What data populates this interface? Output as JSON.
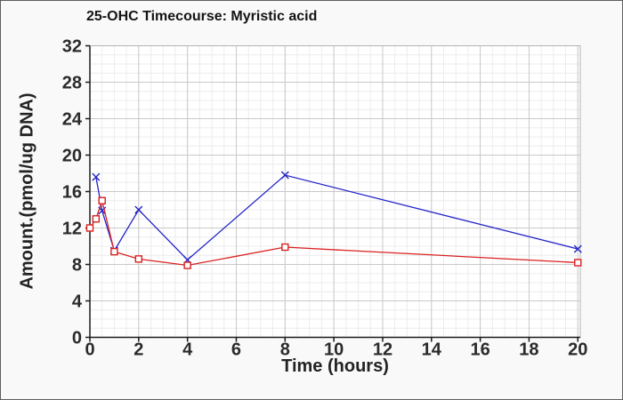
{
  "chart_data": {
    "type": "line",
    "title": "25-OHC Timecourse: Myristic acid",
    "xlabel": "Time (hours)",
    "ylabel": "Amount.(pmol/ug DNA)",
    "xlim": [
      0,
      20.1
    ],
    "ylim": [
      0,
      32
    ],
    "x_ticks": [
      0,
      2,
      4,
      6,
      8,
      10,
      12,
      14,
      16,
      18,
      20
    ],
    "y_ticks": [
      0,
      4,
      8,
      12,
      16,
      20,
      24,
      28,
      32
    ],
    "x_minor_step": 0.5,
    "y_minor_step": 1,
    "grid": "major and minor, both axes",
    "legend_position": "none",
    "series": [
      {
        "id": "blue",
        "marker": "x",
        "color": "#2323c8",
        "points": [
          [
            0.25,
            17.6
          ],
          [
            0.5,
            13.9
          ],
          [
            1,
            9.5
          ],
          [
            2,
            14.0
          ],
          [
            4,
            8.5
          ],
          [
            8,
            17.8
          ],
          [
            20,
            9.7
          ]
        ]
      },
      {
        "id": "red",
        "marker": "open-square",
        "color": "#d92020",
        "points": [
          [
            0,
            12.0
          ],
          [
            0.25,
            13.0
          ],
          [
            0.5,
            15.0
          ],
          [
            1,
            9.4
          ],
          [
            2,
            8.6
          ],
          [
            4,
            7.9
          ],
          [
            8,
            9.9
          ],
          [
            20,
            8.2
          ]
        ]
      }
    ],
    "colors": {
      "figure_background": "#f9f9f9",
      "plot_background": "#ffffff",
      "grid_major": "#c9c9c9",
      "grid_minor": "#ececec",
      "axis": "#1a1a1a",
      "plot_border": "#b3b3b3",
      "tick_text": "#2b2b2b"
    }
  }
}
